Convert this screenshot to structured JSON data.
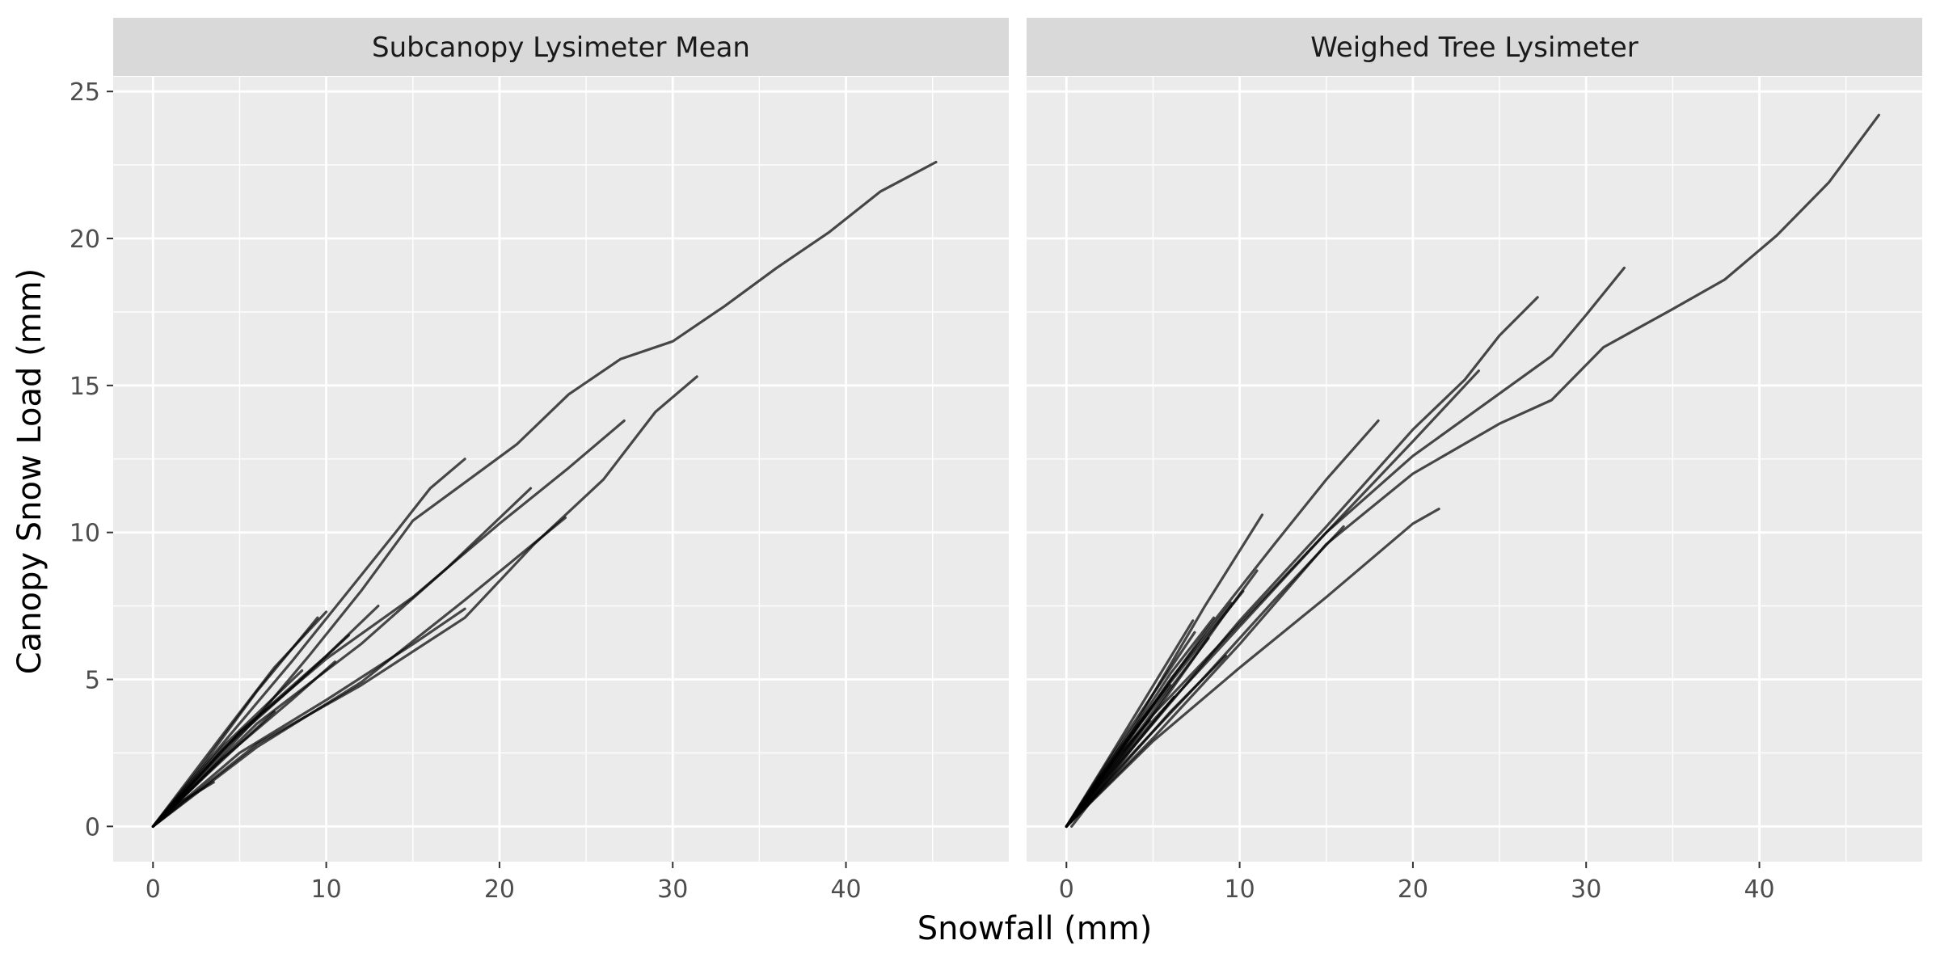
{
  "chart_data": {
    "type": "line",
    "xlabel": "Snowfall (mm)",
    "ylabel": "Canopy Snow Load (mm)",
    "xlim": [
      -2.3,
      49.4
    ],
    "ylim": [
      -1.2,
      25.5
    ],
    "x_ticks": [
      0,
      10,
      20,
      30,
      40
    ],
    "y_ticks": [
      0,
      5,
      10,
      15,
      20,
      25
    ],
    "grid": true,
    "legend": "none",
    "line_color": "#000000",
    "line_alpha": 0.7,
    "panels": [
      {
        "strip": "Subcanopy Lysimeter Mean",
        "series": [
          {
            "x": [
              0,
              3,
              6,
              9,
              12,
              15,
              18,
              21,
              24,
              27,
              30,
              33,
              36,
              39,
              42,
              45.2
            ],
            "y": [
              0,
              1.8,
              3.7,
              5.8,
              8.0,
              10.4,
              11.7,
              13.0,
              14.7,
              15.9,
              16.5,
              17.7,
              19.0,
              20.2,
              21.6,
              22.6
            ]
          },
          {
            "x": [
              0,
              4,
              8,
              11,
              14,
              16,
              18
            ],
            "y": [
              0,
              2.8,
              5.6,
              7.8,
              10.0,
              11.5,
              12.5
            ]
          },
          {
            "x": [
              0,
              5,
              10,
              15,
              20,
              24,
              27.2
            ],
            "y": [
              0,
              3.2,
              5.7,
              7.8,
              10.3,
              12.2,
              13.8
            ]
          },
          {
            "x": [
              0,
              6,
              12,
              18,
              22,
              26,
              29,
              31.4
            ],
            "y": [
              0,
              2.8,
              4.8,
              7.1,
              9.6,
              11.8,
              14.1,
              15.3
            ]
          },
          {
            "x": [
              0,
              6,
              12,
              18,
              23.8
            ],
            "y": [
              0,
              2.7,
              4.9,
              7.7,
              10.5
            ]
          },
          {
            "x": [
              0,
              5,
              10,
              15,
              18
            ],
            "y": [
              0,
              2.5,
              4.3,
              6.2,
              7.4
            ]
          },
          {
            "x": [
              0,
              6,
              12,
              17,
              21.8
            ],
            "y": [
              0,
              3.5,
              6.2,
              8.8,
              11.5
            ]
          },
          {
            "x": [
              0,
              4,
              7,
              10
            ],
            "y": [
              0,
              3.1,
              5.4,
              7.3
            ]
          },
          {
            "x": [
              0,
              5,
              10,
              13
            ],
            "y": [
              0,
              3.2,
              5.8,
              7.5
            ]
          },
          {
            "x": [
              0,
              4,
              8,
              11.3
            ],
            "y": [
              0,
              2.6,
              4.7,
              6.5
            ]
          },
          {
            "x": [
              0,
              4,
              8.6
            ],
            "y": [
              0,
              2.7,
              5.3
            ]
          },
          {
            "x": [
              0,
              3,
              6,
              9.5
            ],
            "y": [
              0,
              2.2,
              4.6,
              7.1
            ]
          },
          {
            "x": [
              0,
              3,
              7
            ],
            "y": [
              0,
              1.7,
              3.9
            ]
          },
          {
            "x": [
              0,
              1.5,
              3.5
            ],
            "y": [
              0,
              0.8,
              1.5
            ]
          },
          {
            "x": [
              0,
              4,
              8,
              10.5
            ],
            "y": [
              0,
              2.3,
              4.3,
              5.6
            ]
          }
        ]
      },
      {
        "strip": "Weighed Tree Lysimeter",
        "series": [
          {
            "x": [
              0,
              5,
              10,
              15,
              20,
              25,
              28,
              31,
              35,
              38,
              41,
              44,
              46.9
            ],
            "y": [
              0,
              3.0,
              6.2,
              9.6,
              12.0,
              13.7,
              14.5,
              16.3,
              17.6,
              18.6,
              20.1,
              21.9,
              24.2
            ]
          },
          {
            "x": [
              0,
              5,
              10,
              15,
              20,
              23,
              25,
              27.2
            ],
            "y": [
              0,
              3.5,
              7.0,
              10.2,
              13.5,
              15.2,
              16.7,
              18.0
            ]
          },
          {
            "x": [
              0,
              5,
              10,
              15,
              20,
              24,
              28,
              30,
              32.2
            ],
            "y": [
              0,
              3.8,
              6.9,
              10.0,
              12.6,
              14.3,
              16.0,
              17.4,
              19.0
            ]
          },
          {
            "x": [
              0,
              4,
              8,
              12,
              15,
              18
            ],
            "y": [
              0,
              3.3,
              6.6,
              9.6,
              11.8,
              13.8
            ]
          },
          {
            "x": [
              0,
              5,
              10,
              15,
              20,
              21.5
            ],
            "y": [
              0,
              2.9,
              5.4,
              7.8,
              10.3,
              10.8
            ]
          },
          {
            "x": [
              0,
              4,
              8,
              11.3
            ],
            "y": [
              0,
              3.5,
              7.5,
              10.6
            ]
          },
          {
            "x": [
              0,
              5,
              10,
              15,
              20,
              23.8
            ],
            "y": [
              0,
              3.6,
              6.8,
              10.0,
              13.1,
              15.5
            ]
          },
          {
            "x": [
              0,
              4,
              8,
              12,
              16
            ],
            "y": [
              0,
              2.6,
              5.1,
              7.7,
              10.2
            ]
          },
          {
            "x": [
              0,
              3,
              6,
              9,
              11
            ],
            "y": [
              0,
              2.2,
              4.6,
              7.1,
              8.7
            ]
          },
          {
            "x": [
              0,
              3,
              6,
              8.5
            ],
            "y": [
              0,
              2.5,
              5.2,
              7.1
            ]
          },
          {
            "x": [
              0,
              3,
              6,
              9.2
            ],
            "y": [
              0,
              1.9,
              3.9,
              5.8
            ]
          },
          {
            "x": [
              0,
              2.5,
              5,
              7.4
            ],
            "y": [
              0,
              2.3,
              4.5,
              6.6
            ]
          },
          {
            "x": [
              0,
              3,
              6,
              9.5
            ],
            "y": [
              0,
              2.4,
              5.0,
              7.6
            ]
          },
          {
            "x": [
              0,
              2,
              4,
              6
            ],
            "y": [
              0,
              1.7,
              3.3,
              4.8
            ]
          },
          {
            "x": [
              0,
              3,
              6,
              10.2
            ],
            "y": [
              0,
              2.6,
              4.9,
              8.0
            ]
          },
          {
            "x": [
              0,
              2,
              4.5,
              7.3
            ],
            "y": [
              0,
              1.9,
              4.3,
              7.0
            ]
          },
          {
            "x": [
              0.3,
              2,
              4,
              6.2
            ],
            "y": [
              0,
              1.3,
              2.8,
              4.4
            ]
          },
          {
            "x": [
              0,
              1.5,
              3,
              4.8
            ],
            "y": [
              0,
              1.2,
              2.4,
              3.6
            ]
          },
          {
            "x": [
              0,
              3,
              6,
              8.2
            ],
            "y": [
              0,
              2.3,
              4.7,
              6.4
            ]
          }
        ]
      }
    ]
  }
}
